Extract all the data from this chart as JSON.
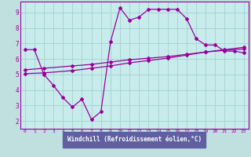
{
  "xlabel": "Windchill (Refroidissement éolien,°C)",
  "bg_color": "#c0e0e0",
  "plot_bg": "#c8ecec",
  "grid_color": "#a8d4d4",
  "line_color": "#990099",
  "xlabel_bg": "#6060a0",
  "xlabel_fg": "#ffffff",
  "xlim": [
    -0.5,
    23.5
  ],
  "ylim": [
    1.5,
    9.7
  ],
  "yticks": [
    2,
    3,
    4,
    5,
    6,
    7,
    8,
    9
  ],
  "xticks": [
    0,
    1,
    2,
    3,
    4,
    5,
    6,
    7,
    8,
    9,
    10,
    11,
    12,
    13,
    14,
    15,
    16,
    17,
    18,
    19,
    20,
    21,
    22,
    23
  ],
  "line1_x": [
    0,
    1,
    2,
    3,
    4,
    5,
    6,
    7,
    8,
    9,
    10,
    11,
    12,
    13,
    14,
    15,
    16,
    17,
    18,
    19,
    20,
    21,
    22,
    23
  ],
  "line1_y": [
    6.6,
    6.6,
    5.0,
    4.3,
    3.5,
    2.9,
    3.4,
    2.1,
    2.6,
    7.1,
    9.3,
    8.5,
    8.7,
    9.2,
    9.2,
    9.2,
    9.2,
    8.6,
    7.3,
    6.9,
    6.9,
    6.5,
    6.5,
    6.4
  ],
  "line2_x": [
    0,
    2,
    5,
    7,
    9,
    11,
    13,
    15,
    17,
    19,
    21,
    23
  ],
  "line2_y": [
    5.05,
    5.1,
    5.25,
    5.4,
    5.55,
    5.75,
    5.9,
    6.05,
    6.25,
    6.45,
    6.6,
    6.75
  ],
  "line3_x": [
    0,
    2,
    5,
    7,
    9,
    11,
    13,
    15,
    17,
    19,
    21,
    23
  ],
  "line3_y": [
    5.3,
    5.4,
    5.55,
    5.65,
    5.8,
    5.95,
    6.05,
    6.15,
    6.3,
    6.45,
    6.55,
    6.65
  ]
}
